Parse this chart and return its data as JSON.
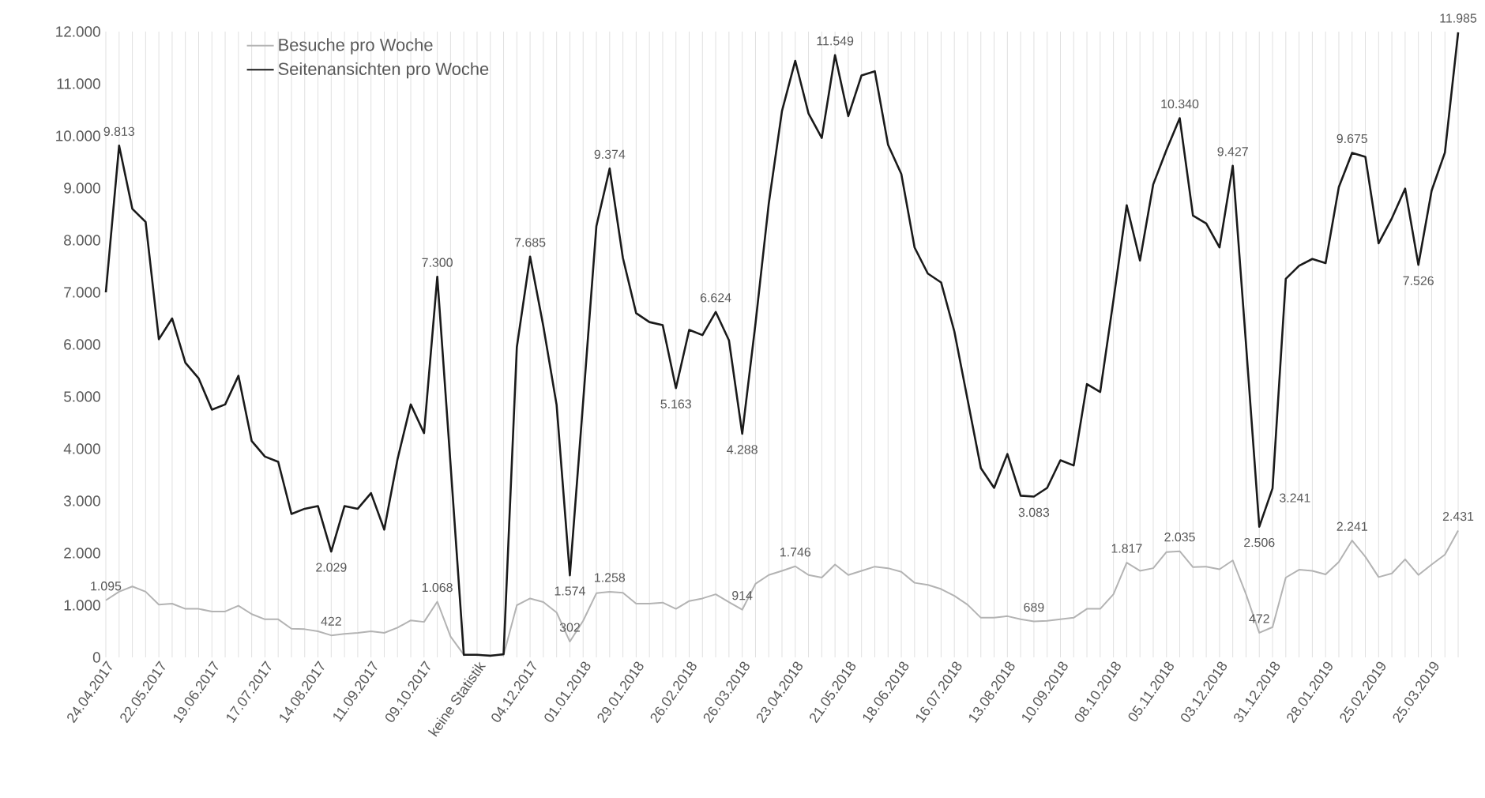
{
  "chart_data": {
    "type": "line",
    "categories": [
      "24.04.2017",
      null,
      null,
      null,
      "22.05.2017",
      null,
      null,
      null,
      "19.06.2017",
      null,
      null,
      null,
      "17.07.2017",
      null,
      null,
      null,
      "14.08.2017",
      null,
      null,
      null,
      "11.09.2017",
      null,
      null,
      null,
      "09.10.2017",
      null,
      null,
      null,
      "keine Statistik",
      null,
      null,
      null,
      "04.12.2017",
      null,
      null,
      null,
      "01.01.2018",
      null,
      null,
      null,
      "29.01.2018",
      null,
      null,
      null,
      "26.02.2018",
      null,
      null,
      null,
      "26.03.2018",
      null,
      null,
      null,
      "23.04.2018",
      null,
      null,
      null,
      "21.05.2018",
      null,
      null,
      null,
      "18.06.2018",
      null,
      null,
      null,
      "16.07.2018",
      null,
      null,
      null,
      "13.08.2018",
      null,
      null,
      null,
      "10.09.2018",
      null,
      null,
      null,
      "08.10.2018",
      null,
      null,
      null,
      "05.11.2018",
      null,
      null,
      null,
      "03.12.2018",
      null,
      null,
      null,
      "31.12.2018",
      null,
      null,
      null,
      "28.01.2019",
      null,
      null,
      null,
      "25.02.2019",
      null,
      null,
      null,
      "25.03.2019",
      null,
      null
    ],
    "series": [
      {
        "name": "Besuche pro Woche",
        "color": "#b3b3b3",
        "values": [
          1095,
          1260,
          1360,
          1260,
          1010,
          1030,
          930,
          930,
          880,
          880,
          990,
          830,
          730,
          730,
          550,
          540,
          500,
          422,
          450,
          470,
          500,
          470,
          570,
          710,
          680,
          1068,
          400,
          50,
          50,
          40,
          40,
          1000,
          1130,
          1060,
          860,
          302,
          700,
          1230,
          1258,
          1240,
          1030,
          1030,
          1050,
          930,
          1080,
          1130,
          1210,
          1060,
          914,
          1410,
          1580,
          1660,
          1746,
          1580,
          1530,
          1780,
          1580,
          1660,
          1740,
          1710,
          1640,
          1430,
          1390,
          1310,
          1180,
          1010,
          760,
          760,
          790,
          730,
          689,
          700,
          730,
          760,
          930,
          930,
          1210,
          1817,
          1660,
          1710,
          2020,
          2035,
          1730,
          1740,
          1690,
          1860,
          1210,
          472,
          580,
          1530,
          1680,
          1660,
          1590,
          1830,
          2241,
          1930,
          1540,
          1610,
          1880,
          1580,
          1780,
          1970,
          2431
        ],
        "value_labels": [
          "1.095",
          null,
          null,
          null,
          null,
          null,
          null,
          null,
          null,
          null,
          null,
          null,
          null,
          null,
          null,
          null,
          null,
          "422",
          null,
          null,
          null,
          null,
          null,
          null,
          null,
          "1.068",
          null,
          null,
          null,
          null,
          null,
          null,
          null,
          null,
          null,
          "302",
          null,
          null,
          "1.258",
          null,
          null,
          null,
          null,
          null,
          null,
          null,
          null,
          null,
          "914",
          null,
          null,
          null,
          "1.746",
          null,
          null,
          null,
          null,
          null,
          null,
          null,
          null,
          null,
          null,
          null,
          null,
          null,
          null,
          null,
          null,
          null,
          "689",
          null,
          null,
          null,
          null,
          null,
          null,
          "1.817",
          null,
          null,
          null,
          "2.035",
          null,
          null,
          null,
          null,
          null,
          "472",
          null,
          null,
          null,
          null,
          null,
          null,
          "2.241",
          null,
          null,
          null,
          null,
          null,
          null,
          null,
          "2.431"
        ]
      },
      {
        "name": "Seitenansichten pro Woche",
        "color": "#1a1a1a",
        "values": [
          7000,
          9813,
          8600,
          8350,
          6100,
          6500,
          5650,
          5350,
          4750,
          4850,
          5400,
          4150,
          3850,
          3750,
          2750,
          2850,
          2900,
          2029,
          2900,
          2850,
          3150,
          2450,
          3800,
          4850,
          4300,
          7300,
          3700,
          50,
          50,
          30,
          60,
          5950,
          7685,
          6350,
          4840,
          1574,
          4900,
          8270,
          9374,
          7660,
          6600,
          6430,
          6370,
          5163,
          6280,
          6180,
          6624,
          6080,
          4288,
          6400,
          8700,
          10480,
          11440,
          10430,
          9960,
          11549,
          10380,
          11160,
          11240,
          9830,
          9270,
          7860,
          7360,
          7190,
          6250,
          4940,
          3630,
          3250,
          3900,
          3100,
          3083,
          3250,
          3780,
          3680,
          5240,
          5090,
          6850,
          8670,
          7610,
          9070,
          9730,
          10340,
          8470,
          8320,
          7860,
          9427,
          6000,
          2506,
          3241,
          7260,
          7510,
          7640,
          7560,
          9020,
          9675,
          9600,
          7940,
          8420,
          8990,
          7526,
          8950,
          9680,
          11985
        ],
        "value_labels": [
          null,
          "9.813",
          null,
          null,
          null,
          null,
          null,
          null,
          null,
          null,
          null,
          null,
          null,
          null,
          null,
          null,
          null,
          "2.029",
          null,
          null,
          null,
          null,
          null,
          null,
          null,
          "7.300",
          null,
          null,
          null,
          null,
          null,
          null,
          "7.685",
          null,
          null,
          "1.574",
          null,
          null,
          "9.374",
          null,
          null,
          null,
          null,
          "5.163",
          null,
          null,
          "6.624",
          null,
          "4.288",
          null,
          null,
          null,
          null,
          null,
          null,
          "11.549",
          null,
          null,
          null,
          null,
          null,
          null,
          null,
          null,
          null,
          null,
          null,
          null,
          null,
          null,
          "3.083",
          null,
          null,
          null,
          null,
          null,
          null,
          null,
          null,
          null,
          null,
          "10.340",
          null,
          null,
          null,
          "9.427",
          null,
          "2.506",
          "3.241",
          null,
          null,
          null,
          null,
          null,
          "9.675",
          null,
          null,
          null,
          null,
          "7.526",
          null,
          null,
          "11.985"
        ]
      }
    ],
    "ylim": [
      0,
      12000
    ],
    "yticks": [
      0,
      {
        "value": 1000,
        "label": "1.000"
      },
      {
        "value": 2000,
        "label": "2.000"
      },
      {
        "value": 3000,
        "label": "3.000"
      },
      {
        "value": 4000,
        "label": "4.000"
      },
      {
        "value": 5000,
        "label": "5.000"
      },
      {
        "value": 6000,
        "label": "6.000"
      },
      {
        "value": 7000,
        "label": "7.000"
      },
      {
        "value": 8000,
        "label": "8.000"
      },
      {
        "value": 9000,
        "label": "9.000"
      },
      {
        "value": 10000,
        "label": "10.000"
      },
      {
        "value": 11000,
        "label": "11.000"
      },
      {
        "value": 12000,
        "label": "12.000"
      }
    ],
    "grid": "x",
    "legend": "top left",
    "marker": "none",
    "line_style": "solid"
  }
}
